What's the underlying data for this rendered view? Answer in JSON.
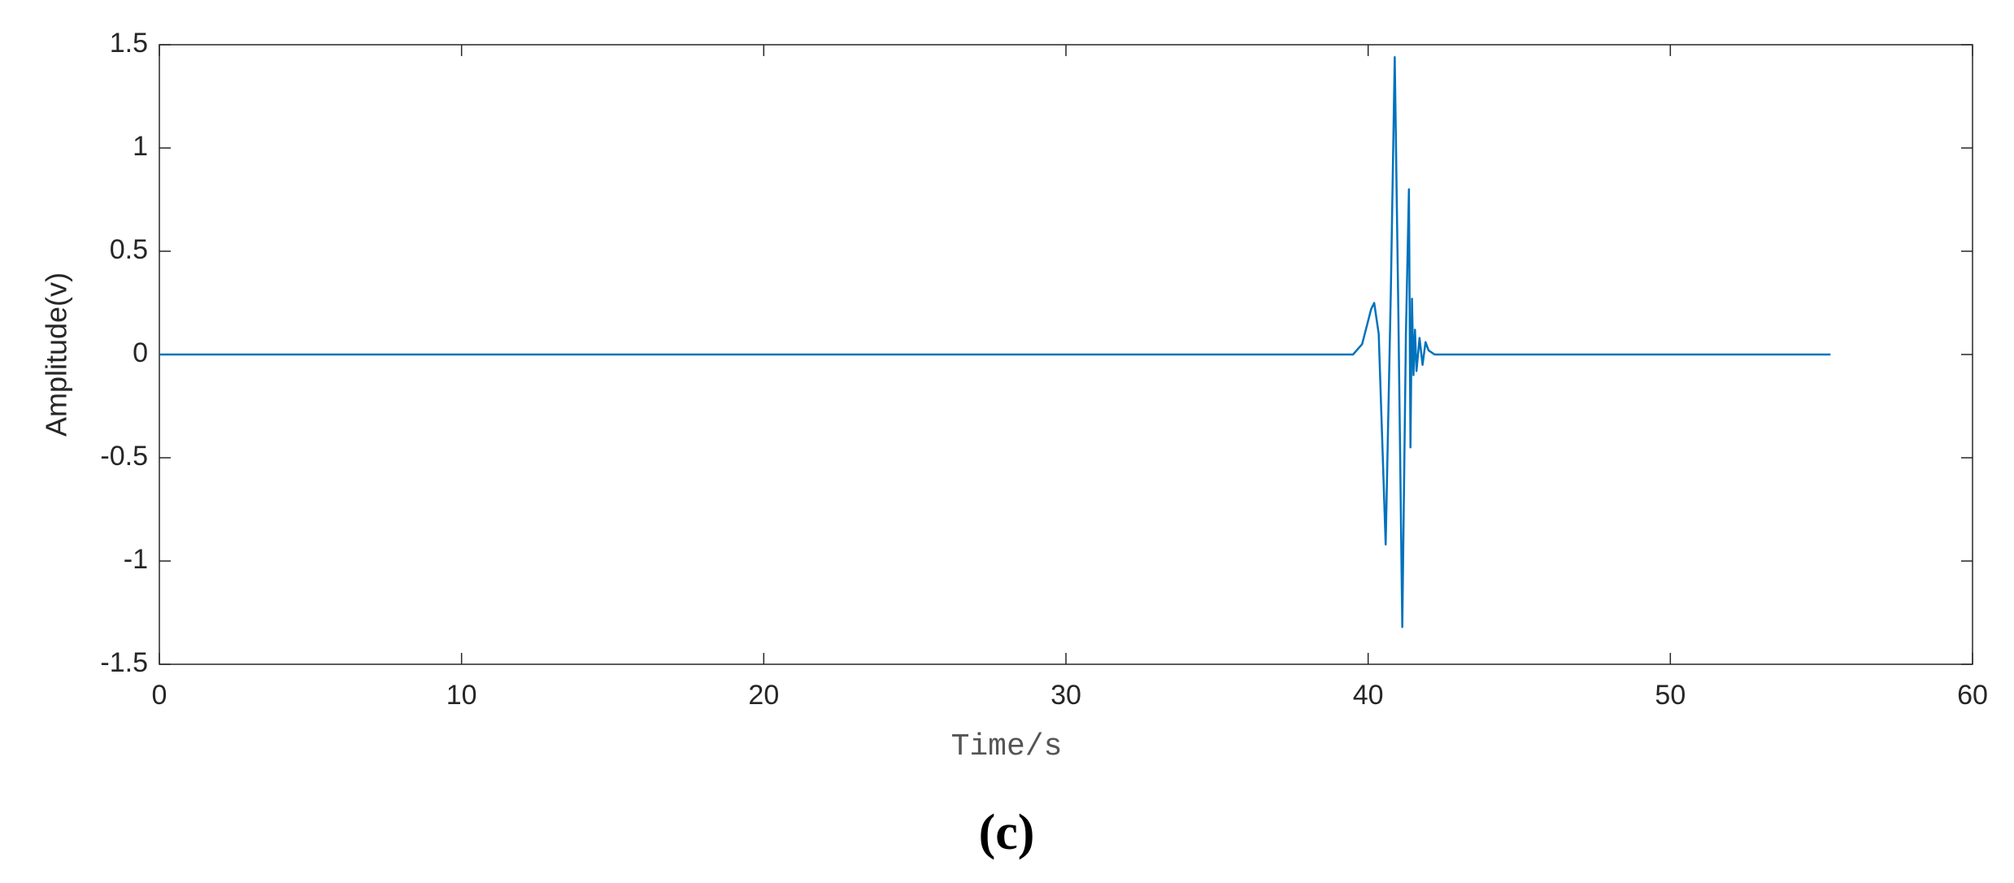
{
  "chart_data": {
    "type": "line",
    "x_label": "Time/s",
    "y_label": "Amplitude(v)",
    "caption": "(c)",
    "xlim": [
      0,
      60
    ],
    "xticks": [
      0,
      10,
      20,
      30,
      40,
      50,
      60
    ],
    "ylim": [
      -1.5,
      1.5
    ],
    "yticks": [
      -1.5,
      -1,
      -0.5,
      0,
      0.5,
      1,
      1.5
    ],
    "grid": false,
    "series": [
      {
        "color": "#0072bd",
        "x": [
          0,
          39.5,
          39.8,
          40.1,
          40.2,
          40.35,
          40.58,
          40.75,
          40.88,
          41.0,
          41.13,
          41.25,
          41.35,
          41.4,
          41.45,
          41.5,
          41.55,
          41.6,
          41.7,
          41.8,
          41.9,
          42.0,
          42.2,
          43.0,
          55.3
        ],
        "values": [
          0,
          0,
          0.05,
          0.22,
          0.25,
          0.1,
          -0.92,
          0.3,
          1.44,
          0.2,
          -1.32,
          0.1,
          0.8,
          -0.45,
          0.27,
          -0.1,
          0.12,
          -0.08,
          0.08,
          -0.05,
          0.06,
          0.02,
          0,
          0,
          0
        ]
      }
    ]
  }
}
